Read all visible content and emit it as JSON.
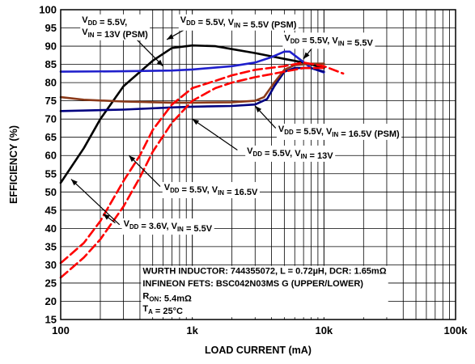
{
  "chart_data": {
    "type": "line",
    "xlabel": "LOAD CURRENT (mA)",
    "ylabel": "EFFICIENCY (%)",
    "xscale": "log",
    "xlim": [
      100,
      100000
    ],
    "ylim": [
      15,
      100
    ],
    "grid": true,
    "x_ticks": [
      {
        "value": 100,
        "label": "100"
      },
      {
        "value": 1000,
        "label": "1k"
      },
      {
        "value": 10000,
        "label": "10k"
      },
      {
        "value": 100000,
        "label": "100k"
      }
    ],
    "y_ticks": [
      15,
      20,
      25,
      30,
      35,
      40,
      45,
      50,
      55,
      60,
      65,
      70,
      75,
      80,
      85,
      90,
      95,
      100
    ],
    "series": [
      {
        "id": "vdd36-vin55",
        "color": "#000000",
        "dash": false,
        "points": [
          [
            100,
            52.5
          ],
          [
            150,
            62
          ],
          [
            200,
            70
          ],
          [
            300,
            79
          ],
          [
            500,
            86
          ],
          [
            700,
            89.5
          ],
          [
            1000,
            90.2
          ],
          [
            1500,
            90
          ],
          [
            2000,
            89.2
          ],
          [
            3000,
            88.1
          ],
          [
            5000,
            86.5
          ],
          [
            7000,
            85.5
          ],
          [
            10000,
            84
          ]
        ]
      },
      {
        "id": "vdd55-vin55-psm",
        "color": "#2020cc",
        "dash": false,
        "points": [
          [
            100,
            83
          ],
          [
            300,
            83.1
          ],
          [
            700,
            83.3
          ],
          [
            1000,
            83.6
          ],
          [
            2000,
            84.5
          ],
          [
            3000,
            85.5
          ],
          [
            4000,
            87
          ],
          [
            5000,
            88.5
          ],
          [
            5500,
            88.5
          ],
          [
            6500,
            86.5
          ],
          [
            8000,
            84
          ],
          [
            10000,
            82.8
          ]
        ]
      },
      {
        "id": "vdd55-vin55",
        "color": "#000080",
        "dash": false,
        "points": [
          [
            100,
            72.2
          ],
          [
            300,
            72.6
          ],
          [
            700,
            73.2
          ],
          [
            1000,
            73.4
          ],
          [
            2000,
            73.6
          ],
          [
            3000,
            74
          ],
          [
            3700,
            75.5
          ],
          [
            4200,
            79
          ],
          [
            5000,
            83
          ],
          [
            6000,
            84
          ],
          [
            8000,
            84
          ],
          [
            10000,
            83
          ]
        ]
      },
      {
        "id": "vdd55-vin13-psm",
        "color": "#8b3a1a",
        "dash": false,
        "points": [
          [
            100,
            76
          ],
          [
            150,
            75.3
          ],
          [
            300,
            74.8
          ],
          [
            700,
            74.5
          ],
          [
            1000,
            74.5
          ],
          [
            2000,
            74.6
          ],
          [
            3000,
            75
          ],
          [
            3500,
            76
          ],
          [
            4200,
            80
          ],
          [
            5000,
            83.5
          ],
          [
            6000,
            84.8
          ],
          [
            8000,
            85.2
          ],
          [
            10000,
            85.2
          ]
        ]
      },
      {
        "id": "vdd55-vin13",
        "color": "#ff0000",
        "dash": true,
        "points": [
          [
            100,
            30.5
          ],
          [
            150,
            36
          ],
          [
            200,
            42
          ],
          [
            300,
            53
          ],
          [
            400,
            60
          ],
          [
            500,
            67
          ],
          [
            700,
            74
          ],
          [
            1000,
            78.5
          ],
          [
            1500,
            80.5
          ],
          [
            2000,
            82
          ],
          [
            3000,
            83.5
          ],
          [
            5000,
            84.5
          ],
          [
            7000,
            85.5
          ],
          [
            10000,
            84.5
          ],
          [
            14000,
            82.5
          ]
        ]
      },
      {
        "id": "vdd55-vin165",
        "color": "#ff0000",
        "dash": true,
        "points": [
          [
            100,
            26.5
          ],
          [
            150,
            32
          ],
          [
            200,
            37
          ],
          [
            300,
            46
          ],
          [
            400,
            54
          ],
          [
            500,
            61
          ],
          [
            700,
            69
          ],
          [
            1000,
            75
          ],
          [
            1500,
            78.5
          ],
          [
            2000,
            80
          ],
          [
            3000,
            81.5
          ],
          [
            5000,
            83
          ],
          [
            7000,
            84
          ],
          [
            10000,
            84
          ]
        ]
      }
    ],
    "labels": [
      {
        "id": "lbl-psm55",
        "lines": [
          [
            {
              "t": "V"
            },
            {
              "t": "DD",
              "sub": true
            },
            {
              "t": " = 5.5V,"
            }
          ],
          [
            {
              "t": "V"
            },
            {
              "t": "IN",
              "sub": true
            },
            {
              "t": " = 13V (PSM)"
            }
          ]
        ],
        "x": 145,
        "y": 96.5
      },
      {
        "id": "lbl-psm-top",
        "lines": [
          [
            {
              "t": "V"
            },
            {
              "t": "DD",
              "sub": true
            },
            {
              "t": " = 5.5V, V"
            },
            {
              "t": "IN",
              "sub": true
            },
            {
              "t": " = 5.5V (PSM)"
            }
          ]
        ],
        "x": 810,
        "y": 96.5
      },
      {
        "id": "lbl-55-55",
        "lines": [
          [
            {
              "t": "V"
            },
            {
              "t": "DD",
              "sub": true
            },
            {
              "t": " = 5.5V, V"
            },
            {
              "t": "IN",
              "sub": true
            },
            {
              "t": " = 5.5V"
            }
          ]
        ],
        "x": 5000,
        "y": 91.5
      },
      {
        "id": "lbl-165psm",
        "lines": [
          [
            {
              "t": "V"
            },
            {
              "t": "DD",
              "sub": true
            },
            {
              "t": " = 5.5V, V"
            },
            {
              "t": "IN",
              "sub": true
            },
            {
              "t": " = 16.5V (PSM)"
            }
          ]
        ],
        "x": 4500,
        "y": 66.5
      },
      {
        "id": "lbl-13",
        "lines": [
          [
            {
              "t": "V"
            },
            {
              "t": "DD",
              "sub": true
            },
            {
              "t": " = 5.5V, V"
            },
            {
              "t": "IN",
              "sub": true
            },
            {
              "t": " = 13V"
            }
          ]
        ],
        "x": 2600,
        "y": 60.5
      },
      {
        "id": "lbl-165",
        "lines": [
          [
            {
              "t": "V"
            },
            {
              "t": "DD",
              "sub": true
            },
            {
              "t": " = 5.5V, V"
            },
            {
              "t": "IN",
              "sub": true
            },
            {
              "t": " = 16.5V"
            }
          ]
        ],
        "x": 610,
        "y": 50.5
      },
      {
        "id": "lbl-36",
        "lines": [
          [
            {
              "t": "V"
            },
            {
              "t": "DD",
              "sub": true
            },
            {
              "t": " = 3.6V, V"
            },
            {
              "t": "IN",
              "sub": true
            },
            {
              "t": " = 5.5V"
            }
          ]
        ],
        "x": 300,
        "y": 40.5
      }
    ],
    "annotation_lines": [
      [
        {
          "t": "WURTH INDUCTOR: 744355072, L = 0.72µH, DCR: 1.65mΩ"
        }
      ],
      [
        {
          "t": "INFINEON FETS: BSC042N03MS G (UPPER/LOWER)"
        }
      ],
      [
        {
          "t": "R"
        },
        {
          "t": "ON",
          "sub": true
        },
        {
          "t": ": 5.4mΩ"
        }
      ],
      [
        {
          "t": "T"
        },
        {
          "t": "A",
          "sub": true
        },
        {
          "t": " = 25°C"
        }
      ]
    ],
    "arrows": [
      {
        "from": [
          300,
          95.5
        ],
        "to": [
          600,
          84.5
        ]
      },
      {
        "from": [
          1100,
          96.6
        ],
        "to": [
          640,
          91.8
        ]
      },
      {
        "from": [
          9000,
          91.5
        ],
        "to": [
          7000,
          86.5
        ]
      },
      {
        "from": [
          4300,
          67.5
        ],
        "to": [
          3000,
          73.6
        ]
      },
      {
        "from": [
          2200,
          61.5
        ],
        "to": [
          1000,
          70
        ]
      },
      {
        "from": [
          570,
          51.5
        ],
        "to": [
          330,
          60
        ]
      },
      {
        "from": [
          280,
          41
        ],
        "to": [
          120,
          53.5
        ]
      },
      {
        "from": [
          260,
          41.5
        ],
        "to": [
          210,
          44
        ]
      }
    ]
  }
}
